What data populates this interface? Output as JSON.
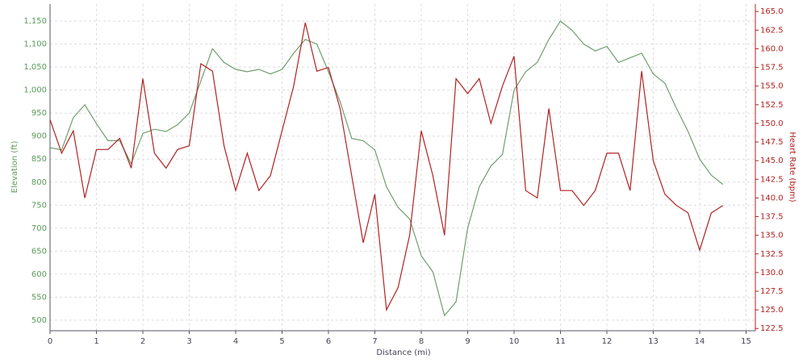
{
  "chart_data": {
    "type": "line",
    "x_label": "Distance (mi)",
    "y_label": "Elevation (ft)",
    "y2_label": "Heart Rate (bpm)",
    "x": [
      0,
      0.25,
      0.5,
      0.75,
      1,
      1.25,
      1.5,
      1.75,
      2,
      2.25,
      2.5,
      2.75,
      3,
      3.25,
      3.5,
      3.75,
      4,
      4.25,
      4.5,
      4.75,
      5,
      5.25,
      5.5,
      5.75,
      6,
      6.25,
      6.5,
      6.75,
      7,
      7.25,
      7.5,
      7.75,
      8,
      8.25,
      8.5,
      8.75,
      9,
      9.25,
      9.5,
      9.75,
      10,
      10.25,
      10.5,
      10.75,
      11,
      11.25,
      11.5,
      11.75,
      12,
      12.25,
      12.5,
      12.75,
      13,
      13.25,
      13.5,
      13.75,
      14,
      14.25,
      14.5
    ],
    "series": [
      {
        "color": "#6f9f6f",
        "axis": "y",
        "values": [
          875,
          870,
          940,
          968,
          927,
          890,
          890,
          840,
          906,
          915,
          910,
          925,
          950,
          1020,
          1090,
          1060,
          1045,
          1040,
          1045,
          1035,
          1045,
          1080,
          1110,
          1100,
          1040,
          975,
          895,
          890,
          870,
          790,
          745,
          720,
          640,
          605,
          510,
          540,
          700,
          790,
          835,
          860,
          1000,
          1040,
          1060,
          1110,
          1150,
          1130,
          1100,
          1085,
          1095,
          1060,
          1070,
          1080,
          1035,
          1015,
          960,
          910,
          850,
          815,
          795
        ]
      },
      {
        "color": "#b22222",
        "axis": "y2",
        "values": [
          150.5,
          146,
          149,
          140,
          146.5,
          146.5,
          148,
          144,
          156,
          146,
          144,
          146.5,
          147,
          158,
          157,
          147,
          141,
          146,
          141,
          143,
          149,
          155,
          163.5,
          157,
          157.5,
          152,
          143,
          134,
          140.5,
          125,
          128,
          135,
          149,
          143,
          135,
          156,
          154,
          156,
          150,
          155,
          159,
          141,
          140,
          152,
          141,
          141,
          139,
          141,
          146,
          146,
          141,
          157,
          145,
          140.5,
          139,
          138,
          133,
          138,
          139
        ]
      }
    ],
    "xlim": [
      0,
      15.2
    ],
    "xticks": [
      0,
      1,
      2,
      3,
      4,
      5,
      6,
      7,
      8,
      9,
      10,
      11,
      12,
      13,
      14,
      15
    ],
    "ylim": [
      477,
      1187
    ],
    "yticks": [
      500,
      550,
      600,
      650,
      700,
      750,
      800,
      850,
      900,
      950,
      {
        "value": 1000,
        "label": "1,000"
      },
      {
        "value": 1050,
        "label": "1,050"
      },
      {
        "value": 1100,
        "label": "1,100"
      },
      {
        "value": 1150,
        "label": "1,150"
      }
    ],
    "y2lim": [
      122.2,
      166
    ],
    "y2ticks": [
      122.5,
      {
        "value": 125,
        "label": "125.0"
      },
      127.5,
      {
        "value": 130,
        "label": "130.0"
      },
      132.5,
      {
        "value": 135,
        "label": "135.0"
      },
      137.5,
      {
        "value": 140,
        "label": "140.0"
      },
      142.5,
      {
        "value": 145,
        "label": "145.0"
      },
      147.5,
      {
        "value": 150,
        "label": "150.0"
      },
      152.5,
      {
        "value": 155,
        "label": "155.0"
      },
      157.5,
      {
        "value": 160,
        "label": "160.0"
      },
      162.5,
      {
        "value": 165,
        "label": "165.0"
      }
    ],
    "grid": true
  }
}
